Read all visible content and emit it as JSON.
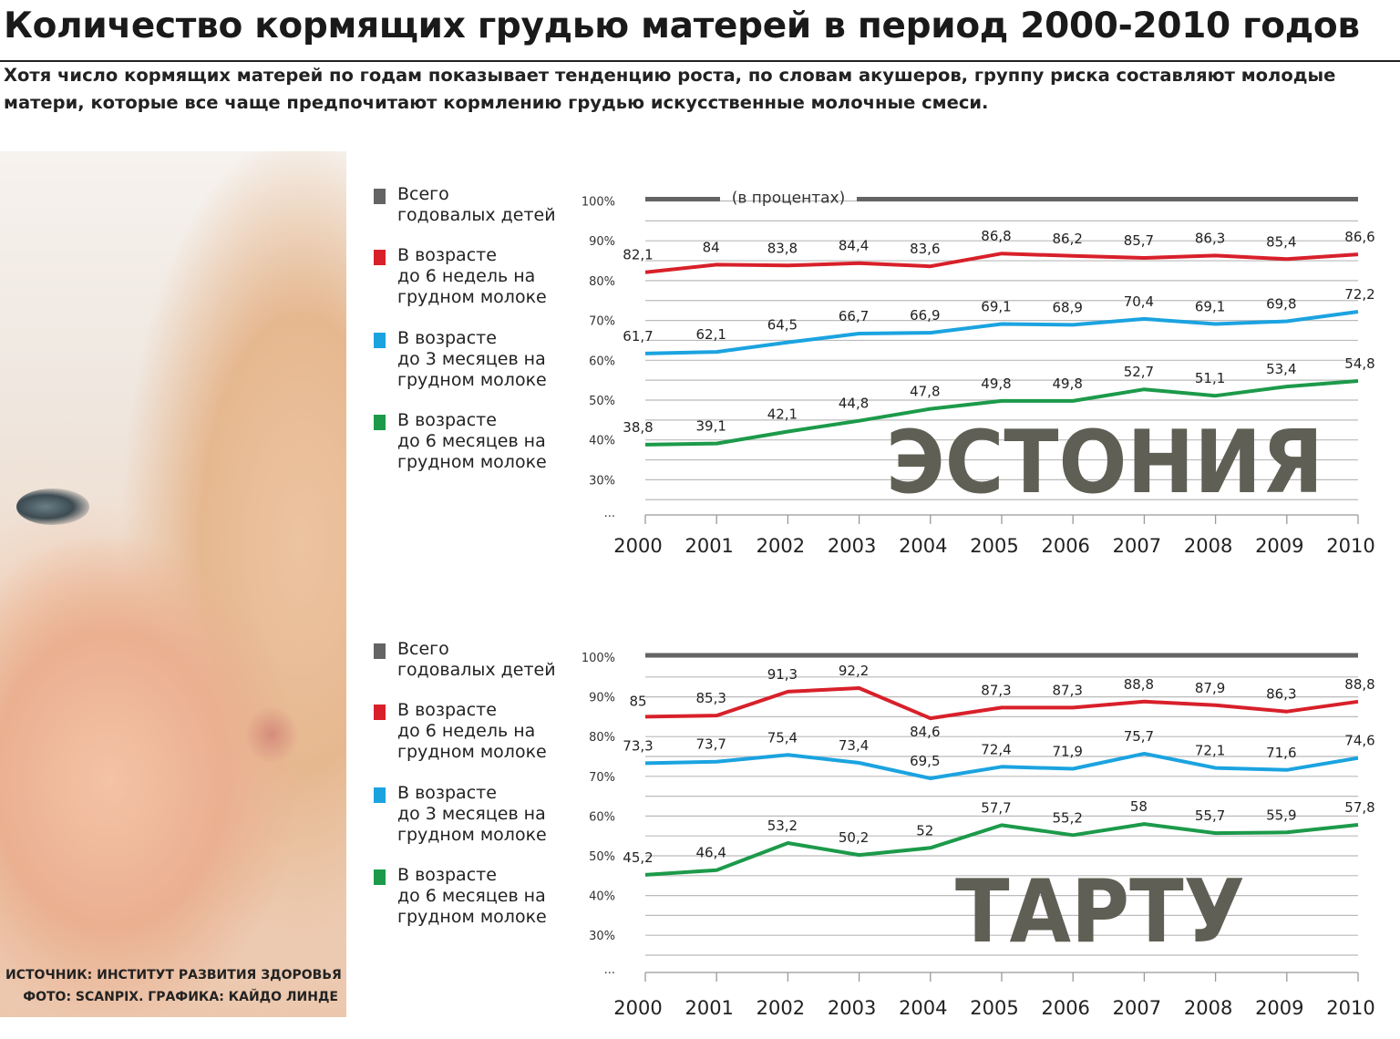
{
  "header": {
    "title": "Количество кормящих грудью матерей в период 2000-2010 годов",
    "subtitle": "Хотя число кормящих матерей по годам показывает тенденцию роста, по словам акушеров, группу риска составляют молодые матери, которые все чаще предпочитают кормлению грудью искусственные молочные смеси."
  },
  "credits": {
    "source": "ИСТОЧНИК: ИНСТИТУТ РАЗВИТИЯ ЗДОРОВЬЯ",
    "photo": "ФОТО: SCANPIX. ГРАФИКА: КАЙДО ЛИНДЕ"
  },
  "colors": {
    "total": "#646464",
    "w6": "#d8202a",
    "m3": "#1ba3e0",
    "m6": "#1c9a4a"
  },
  "legend": [
    {
      "key": "total",
      "label": "Всего\nгодовалых детей"
    },
    {
      "key": "w6",
      "label": "В возрасте\nдо 6 недель на\nгрудном молоке"
    },
    {
      "key": "m3",
      "label": "В возрасте\nдо 3 месяцев на\nгрудном молоке"
    },
    {
      "key": "m6",
      "label": "В возрасте\nдо 6 месяцев на\nгрудном молоке"
    }
  ],
  "chart_data": [
    {
      "type": "line",
      "title": "ЭСТОНИЯ",
      "unit_note": "(в процентах)",
      "x": [
        "2000",
        "2001",
        "2002",
        "2003",
        "2004",
        "2005",
        "2006",
        "2007",
        "2008",
        "2009",
        "2010"
      ],
      "y_ticks": [
        "100%",
        "90%",
        "80%",
        "70%",
        "60%",
        "50%",
        "40%",
        "30%",
        "..."
      ],
      "ylim": [
        30,
        100
      ],
      "grid": true,
      "series": [
        {
          "name": "Всего годовалых детей",
          "key": "total",
          "values": [
            100,
            100,
            100,
            100,
            100,
            100,
            100,
            100,
            100,
            100,
            100
          ],
          "labels": []
        },
        {
          "name": "В возрасте до 6 недель на грудном молоке",
          "key": "w6",
          "values": [
            82.1,
            84,
            83.8,
            84.4,
            83.6,
            86.8,
            86.2,
            85.7,
            86.3,
            85.4,
            86.6
          ],
          "labels": [
            "82,1",
            "84",
            "83,8",
            "84,4",
            "83,6",
            "86,8",
            "86,2",
            "85,7",
            "86,3",
            "85,4",
            "86,6"
          ]
        },
        {
          "name": "В возрасте до 3 месяцев на грудном молоке",
          "key": "m3",
          "values": [
            61.7,
            62.1,
            64.5,
            66.7,
            66.9,
            69.1,
            68.9,
            70.4,
            69.1,
            69.8,
            72.2
          ],
          "labels": [
            "61,7",
            "62,1",
            "64,5",
            "66,7",
            "66,9",
            "69,1",
            "68,9",
            "70,4",
            "69,1",
            "69,8",
            "72,2"
          ]
        },
        {
          "name": "В возрасте до 6 месяцев на грудном молоке",
          "key": "m6",
          "values": [
            38.8,
            39.1,
            42.1,
            44.8,
            47.8,
            49.8,
            49.8,
            52.7,
            51.1,
            53.4,
            54.8
          ],
          "labels": [
            "38,8",
            "39,1",
            "42,1",
            "44,8",
            "47,8",
            "49,8",
            "49,8",
            "52,7",
            "51,1",
            "53,4",
            "54,8"
          ]
        }
      ]
    },
    {
      "type": "line",
      "title": "ТАРТУ",
      "unit_note": "",
      "x": [
        "2000",
        "2001",
        "2002",
        "2003",
        "2004",
        "2005",
        "2006",
        "2007",
        "2008",
        "2009",
        "2010"
      ],
      "y_ticks": [
        "100%",
        "90%",
        "80%",
        "70%",
        "60%",
        "50%",
        "40%",
        "30%",
        "..."
      ],
      "ylim": [
        30,
        100
      ],
      "grid": true,
      "series": [
        {
          "name": "Всего годовалых детей",
          "key": "total",
          "values": [
            100,
            100,
            100,
            100,
            100,
            100,
            100,
            100,
            100,
            100,
            100
          ],
          "labels": []
        },
        {
          "name": "В возрасте до 6 недель на грудном молоке",
          "key": "w6",
          "values": [
            85,
            85.3,
            91.3,
            92.2,
            84.6,
            87.3,
            87.3,
            88.8,
            87.9,
            86.3,
            88.8
          ],
          "labels": [
            "85",
            "85,3",
            "91,3",
            "92,2",
            "84,6",
            "87,3",
            "87,3",
            "88,8",
            "87,9",
            "86,3",
            "88,8"
          ]
        },
        {
          "name": "В возрасте до 3 месяцев на грудном молоке",
          "key": "m3",
          "values": [
            73.3,
            73.7,
            75.4,
            73.4,
            69.5,
            72.4,
            71.9,
            75.7,
            72.1,
            71.6,
            74.6
          ],
          "labels": [
            "73,3",
            "73,7",
            "75,4",
            "73,4",
            "69,5",
            "72,4",
            "71,9",
            "75,7",
            "72,1",
            "71,6",
            "74,6"
          ]
        },
        {
          "name": "В возрасте до 6 месяцев на грудном молоке",
          "key": "m6",
          "values": [
            45.2,
            46.4,
            53.2,
            50.2,
            52,
            57.7,
            55.2,
            58,
            55.7,
            55.9,
            57.8
          ],
          "labels": [
            "45,2",
            "46,4",
            "53,2",
            "50,2",
            "52",
            "57,7",
            "55,2",
            "58",
            "55,7",
            "55,9",
            "57,8"
          ]
        }
      ]
    }
  ]
}
